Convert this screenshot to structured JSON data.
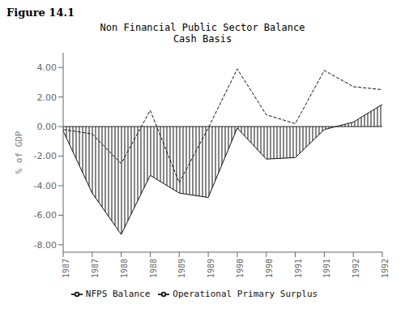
{
  "chart_data": {
    "type": "line",
    "title": "Non Financial Public Sector Balance",
    "subtitle": "Cash Basis",
    "annotations": [
      "Figure 14.1"
    ],
    "y_label": "% of GDP",
    "categories": [
      "1987",
      "1987",
      "1988",
      "1988",
      "1989",
      "1989",
      "1990",
      "1990",
      "1991",
      "1991",
      "1992",
      "1992"
    ],
    "series": [
      {
        "name": "NFPS Balance",
        "type": "area",
        "color": "#111111",
        "values": [
          -0.3,
          -4.5,
          -7.3,
          -3.3,
          -4.5,
          -4.8,
          -0.1,
          -2.2,
          -2.1,
          -0.2,
          0.3,
          1.5
        ]
      },
      {
        "name": "Operational Primary Surplus",
        "type": "line",
        "line_style": "dashed",
        "color": "#111111",
        "values": [
          -0.2,
          -0.5,
          -2.5,
          1.1,
          -3.8,
          -0.1,
          3.9,
          0.8,
          0.2,
          3.8,
          2.7,
          2.5
        ]
      }
    ],
    "ylim": [
      -8.5,
      5.0
    ],
    "yticks": [
      {
        "value": -8.0,
        "label": "-8.00"
      },
      {
        "value": -6.0,
        "label": "-6.00"
      },
      {
        "value": -4.0,
        "label": "-4.00"
      },
      {
        "value": -2.0,
        "label": "-2.00"
      },
      {
        "value": 0.0,
        "label": "0.00"
      },
      {
        "value": 2.0,
        "label": "2.00"
      },
      {
        "value": 4.0,
        "label": "4.00"
      }
    ],
    "grid": false,
    "legend": "bottom"
  }
}
